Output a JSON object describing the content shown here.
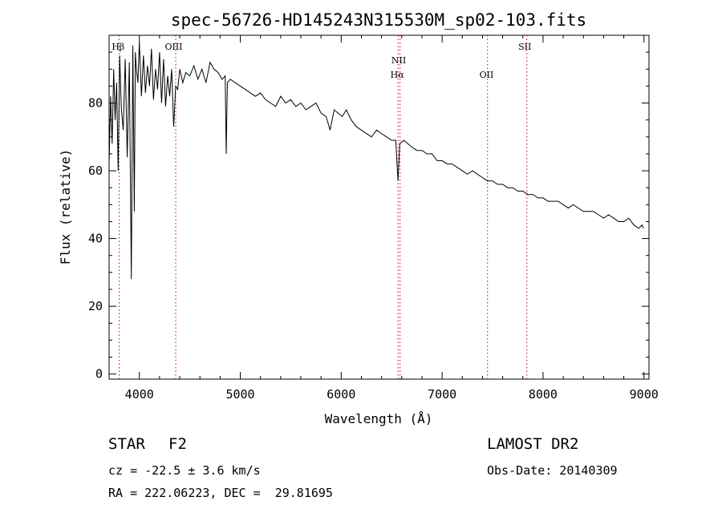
{
  "chart_data": {
    "type": "line",
    "title": "spec-56726-HD145243N315530M_sp02-103.fits",
    "xlabel": "Wavelength (Å)",
    "ylabel": "Flux (relative)",
    "xlim": [
      3700,
      9050
    ],
    "ylim": [
      -1.5,
      100
    ],
    "x_ticks": [
      4000,
      5000,
      6000,
      7000,
      8000,
      9000
    ],
    "y_ticks": [
      0,
      20,
      40,
      60,
      80
    ],
    "grid": false,
    "line_color": "#000000",
    "marker_color": "#cc0000",
    "lines": [
      {
        "label": "Hβ",
        "x": 3800,
        "label_x": 3790,
        "row": 1
      },
      {
        "label": "OIII",
        "x": 4360,
        "label_x": 4340,
        "row": 1
      },
      {
        "label": "NII",
        "x": 6583,
        "label_x": 6570,
        "row": 2
      },
      {
        "label": "Hα",
        "x": 6563,
        "label_x": 6555,
        "row": 3
      },
      {
        "label": "OII",
        "x": 7450,
        "label_x": 7440,
        "row": 3
      },
      {
        "label": "SII",
        "x": 7840,
        "label_x": 7820,
        "row": 1
      }
    ],
    "series": [
      {
        "x": [
          3700,
          3715,
          3730,
          3745,
          3760,
          3775,
          3790,
          3805,
          3820,
          3840,
          3860,
          3880,
          3900,
          3920,
          3935,
          3950,
          3960,
          3970,
          3985,
          4000,
          4020,
          4040,
          4060,
          4080,
          4101,
          4120,
          4140,
          4160,
          4180,
          4200,
          4220,
          4240,
          4260,
          4280,
          4300,
          4320,
          4340,
          4360,
          4380,
          4400,
          4430,
          4460,
          4500,
          4540,
          4580,
          4620,
          4660,
          4700,
          4740,
          4780,
          4820,
          4850,
          4861,
          4872,
          4900,
          4950,
          5000,
          5050,
          5100,
          5150,
          5200,
          5250,
          5300,
          5350,
          5400,
          5450,
          5500,
          5550,
          5600,
          5650,
          5700,
          5750,
          5800,
          5850,
          5890,
          5930,
          5970,
          6010,
          6050,
          6100,
          6150,
          6200,
          6250,
          6300,
          6350,
          6400,
          6450,
          6500,
          6540,
          6563,
          6580,
          6620,
          6660,
          6700,
          6750,
          6800,
          6850,
          6900,
          6950,
          7000,
          7050,
          7100,
          7150,
          7200,
          7250,
          7300,
          7350,
          7400,
          7450,
          7500,
          7550,
          7600,
          7650,
          7700,
          7750,
          7800,
          7850,
          7900,
          7950,
          8000,
          8050,
          8100,
          8150,
          8200,
          8250,
          8300,
          8350,
          8400,
          8450,
          8500,
          8550,
          8600,
          8650,
          8700,
          8750,
          8800,
          8850,
          8900,
          8950,
          8980,
          8995
        ],
        "y": [
          62,
          82,
          68,
          90,
          75,
          86,
          60,
          94,
          79,
          72,
          93,
          64,
          92,
          28,
          97,
          48,
          95,
          90,
          86,
          98,
          82,
          94,
          83,
          91,
          85,
          96,
          81,
          90,
          84,
          95,
          80,
          93,
          79,
          88,
          82,
          90,
          73,
          85,
          84,
          90,
          86,
          89,
          88,
          91,
          87,
          90,
          86,
          92,
          90,
          89,
          87,
          88,
          65,
          86,
          87,
          86,
          85,
          84,
          83,
          82,
          83,
          81,
          80,
          79,
          82,
          80,
          81,
          79,
          80,
          78,
          79,
          80,
          77,
          76,
          72,
          78,
          77,
          76,
          78,
          75,
          73,
          72,
          71,
          70,
          72,
          71,
          70,
          69,
          69,
          57,
          68,
          69,
          68,
          67,
          66,
          66,
          65,
          65,
          63,
          63,
          62,
          62,
          61,
          60,
          59,
          60,
          59,
          58,
          57,
          57,
          56,
          56,
          55,
          55,
          54,
          54,
          53,
          53,
          52,
          52,
          51,
          51,
          51,
          50,
          49,
          50,
          49,
          48,
          48,
          48,
          47,
          46,
          47,
          46,
          45,
          45,
          46,
          44,
          43,
          44,
          43
        ]
      }
    ]
  },
  "annotations": {
    "class_label": "STAR",
    "subclass": "F2",
    "survey": "LAMOST DR2",
    "redshift": "cz = -22.5 ± 3.6 km/s",
    "obs_date": "Obs-Date: 20140309",
    "coords": "RA = 222.06223, DEC =  29.81695"
  }
}
